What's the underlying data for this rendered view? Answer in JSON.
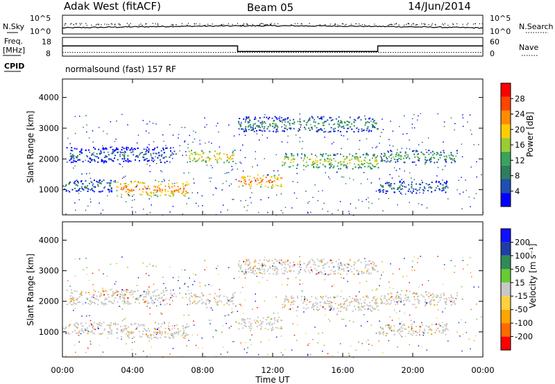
{
  "header": {
    "station": "Adak West (fitACF)",
    "beam": "Beam 05",
    "date": "14/Jun/2014"
  },
  "panel_labels": {
    "nsky": "N.Sky",
    "nsearch": "N.Search",
    "freq_line1": "Freq.",
    "freq_line2": "[MHz]",
    "nave": "Nave",
    "cpid": "CPID",
    "cpid_value": "normalsound (fast) 157 RF"
  },
  "colors": {
    "power_scale": [
      "#0000ff",
      "#1f4fb3",
      "#2e7d5f",
      "#3aa35a",
      "#9acd32",
      "#ffcc00",
      "#ff8c00",
      "#ff4500",
      "#ff0000"
    ],
    "velocity_scale": [
      "#ff0000",
      "#ff6a00",
      "#ffa500",
      "#ffd040",
      "#c8c8c8",
      "#66cc33",
      "#2e8b57",
      "#1e3fa0",
      "#1010ff"
    ],
    "ground_scatter": "#c8c8c8"
  },
  "chart_data": [
    {
      "type": "line",
      "panel": "noise",
      "left_ticks": [
        "10^5",
        "10^0"
      ],
      "right_ticks": [
        "10^5",
        "10^0"
      ],
      "left_label": "N.Sky",
      "right_label": "N.Search",
      "x_range_hours": [
        0,
        24
      ]
    },
    {
      "type": "line",
      "panel": "frequency",
      "left_ticks": [
        "18",
        "8"
      ],
      "right_ticks": [
        "60",
        "0"
      ],
      "left_label": "Freq. [MHz]",
      "right_label": "Nave",
      "series": [
        {
          "name": "Freq.",
          "x": [
            0,
            10,
            10,
            18,
            18,
            24
          ],
          "y": [
            13.5,
            13.5,
            10.5,
            10.5,
            13.5,
            13.5
          ]
        },
        {
          "name": "Nave",
          "x": [
            0,
            24
          ],
          "y": [
            12,
            12
          ]
        }
      ],
      "ylim_freq": [
        8,
        18
      ],
      "ylim_nave": [
        0,
        60
      ]
    },
    {
      "type": "heatmap",
      "panel": "power",
      "title": "",
      "xlabel": "",
      "ylabel": "Slant Range [km]",
      "yticks": [
        "1000",
        "2000",
        "3000",
        "4000"
      ],
      "ylim": [
        180,
        4600
      ],
      "colorbar_label": "Power [dB]",
      "colorbar_ticks": [
        "4",
        "8",
        "12",
        "16",
        "20",
        "24",
        "28"
      ],
      "colorbar_range": [
        0,
        32
      ],
      "bands": [
        {
          "from_h": 0.0,
          "to_h": 3.0,
          "r_lo": 950,
          "r_hi": 1350,
          "power": 11
        },
        {
          "from_h": 3.0,
          "to_h": 7.2,
          "r_lo": 800,
          "r_hi": 1300,
          "power": 25
        },
        {
          "from_h": 7.2,
          "to_h": 9.8,
          "r_lo": 1900,
          "r_hi": 2300,
          "power": 22
        },
        {
          "from_h": 10.0,
          "to_h": 12.5,
          "r_lo": 1100,
          "r_hi": 1500,
          "power": 26
        },
        {
          "from_h": 12.5,
          "to_h": 18.0,
          "r_lo": 1700,
          "r_hi": 2200,
          "power": 18
        },
        {
          "from_h": 10.0,
          "to_h": 18.0,
          "r_lo": 2900,
          "r_hi": 3400,
          "power": 12
        },
        {
          "from_h": 0.2,
          "to_h": 6.5,
          "r_lo": 1900,
          "r_hi": 2400,
          "power": 9
        },
        {
          "from_h": 18.0,
          "to_h": 22.5,
          "r_lo": 1900,
          "r_hi": 2300,
          "power": 14
        },
        {
          "from_h": 18.0,
          "to_h": 22.0,
          "r_lo": 900,
          "r_hi": 1300,
          "power": 10
        }
      ]
    },
    {
      "type": "heatmap",
      "panel": "velocity",
      "title": "",
      "xlabel": "Time UT",
      "ylabel": "Slant Range [km]",
      "xticks": [
        "00:00",
        "04:00",
        "08:00",
        "12:00",
        "16:00",
        "20:00",
        "00:00"
      ],
      "yticks": [
        "1000",
        "2000",
        "3000",
        "4000"
      ],
      "ylim": [
        180,
        4600
      ],
      "colorbar_label": "Velocity [m s⁻¹]",
      "colorbar_ticks": [
        "200",
        "100",
        "50",
        "15",
        "-15",
        "-50",
        "-100",
        "-200"
      ],
      "colorbar_range": [
        -250,
        250
      ]
    }
  ]
}
